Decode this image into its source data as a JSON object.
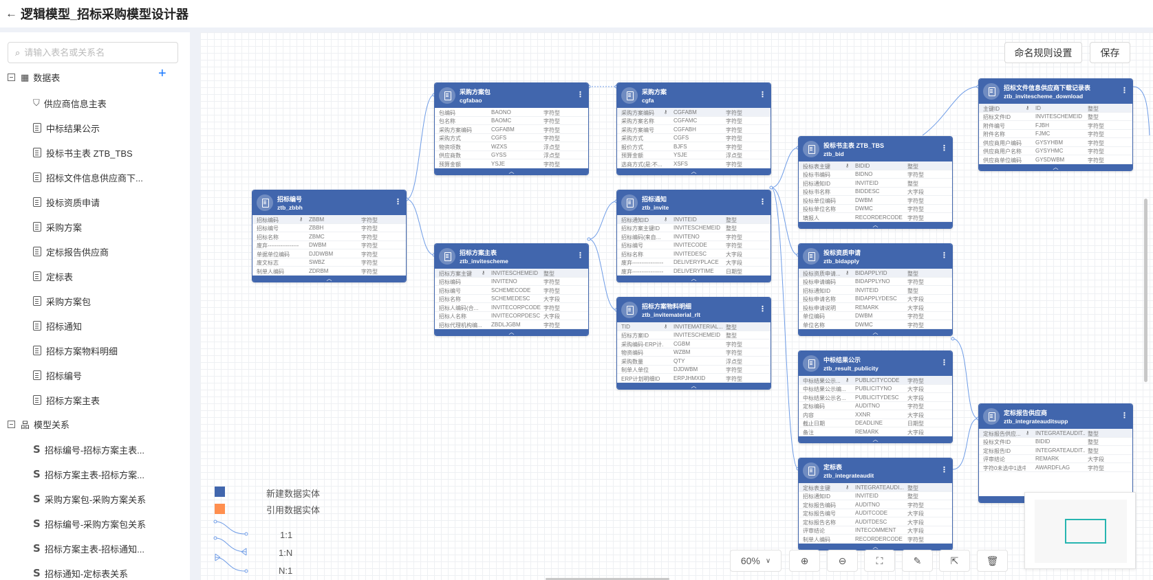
{
  "header": {
    "title": "逻辑模型_招标采购模型设计器",
    "back_icon": "arrow-left-icon"
  },
  "sidebar": {
    "search_placeholder": "请输入表名或关系名",
    "tables_group": "数据表",
    "tables": [
      "供应商信息主表",
      "中标结果公示",
      "投标书主表  ZTB_TBS",
      "招标文件信息供应商下...",
      "投标资质申请",
      "采购方案",
      "定标报告供应商",
      "定标表",
      "采购方案包",
      "招标通知",
      "招标方案物料明细",
      "招标编号",
      "招标方案主表"
    ],
    "relations_group": "模型关系",
    "relations": [
      "招标编号-招标方案主表...",
      "招标方案主表-招标方案...",
      "采购方案包-采购方案关系",
      "招标编号-采购方案包关系",
      "招标方案主表-招标通知...",
      "招标通知-定标表关系"
    ]
  },
  "toolbar": {
    "naming_rules": "命名规则设置",
    "save": "保存",
    "zoom": "60%"
  },
  "legend": {
    "new_entity": "新建数据实体",
    "ref_entity": "引用数据实体",
    "one_one": "1:1",
    "one_n": "1:N",
    "n_one": "N:1",
    "colors": {
      "new": "#4166ad",
      "ref": "#ff8f4f"
    }
  },
  "entities": [
    {
      "title": "招标编号",
      "code": "ztb_zbbh",
      "fields": [
        [
          "招标编码",
          1,
          "ZBBM",
          "字符型"
        ],
        [
          "招标编号",
          0,
          "ZBBH",
          "字符型"
        ],
        [
          "招标名称",
          0,
          "ZBMC",
          "字符型"
        ],
        [
          "废弃-----------------...",
          0,
          "DWBM",
          "字符型"
        ],
        [
          "单据单位编码",
          0,
          "DJDWBM",
          "字符型"
        ],
        [
          "废文标志",
          0,
          "SWBZ",
          "字符型"
        ],
        [
          "制单人编码",
          0,
          "ZDRBM",
          "字符型"
        ]
      ]
    },
    {
      "title": "采购方案包",
      "code": "cgfabao",
      "fields": [
        [
          "包编码",
          0,
          "BAONO",
          "字符型"
        ],
        [
          "包名称",
          0,
          "BAOMC",
          "字符型"
        ],
        [
          "采购方案编码",
          0,
          "CGFABM",
          "字符型"
        ],
        [
          "采购方式",
          0,
          "CGFS",
          "字符型"
        ],
        [
          "物资项数",
          0,
          "WZXS",
          "浮点型"
        ],
        [
          "供应商数",
          0,
          "GYSS",
          "浮点型"
        ],
        [
          "预算金额",
          0,
          "YSJE",
          "字符型"
        ]
      ]
    },
    {
      "title": "招标方案主表",
      "code": "ztb_invitescheme",
      "fields": [
        [
          "招标方案主键",
          1,
          "INVITESCHEMEID",
          "整型"
        ],
        [
          "招标编码",
          0,
          "INVITENO",
          "字符型"
        ],
        [
          "招标编号",
          0,
          "SCHEMECODE",
          "字符型"
        ],
        [
          "招标名称",
          0,
          "SCHEMEDESC",
          "大字段"
        ],
        [
          "招标人编码(合...",
          0,
          "INVITECORPCODE",
          "字符型"
        ],
        [
          "招标人名称",
          0,
          "INVITECORPDESC",
          "大字段"
        ],
        [
          "招标代理机构编...",
          0,
          "ZBDLJGBM",
          "字符型"
        ]
      ]
    },
    {
      "title": "采购方案",
      "code": "cgfa",
      "fields": [
        [
          "采购方案编码",
          1,
          "CGFABM",
          "字符型"
        ],
        [
          "采购方案名称",
          0,
          "CGFAMC",
          "字符型"
        ],
        [
          "采购方案编号",
          0,
          "CGFABH",
          "字符型"
        ],
        [
          "采购方式",
          0,
          "CGFS",
          "字符型"
        ],
        [
          "报价方式",
          0,
          "BJFS",
          "字符型"
        ],
        [
          "预算金额",
          0,
          "YSJE",
          "浮点型"
        ],
        [
          "选商方式(是:不...",
          0,
          "XSFS",
          "字符型"
        ]
      ]
    },
    {
      "title": "招标通知",
      "code": "ztb_invite",
      "fields": [
        [
          "招标通知ID",
          1,
          "INVITEID",
          "整型"
        ],
        [
          "招标方案主键ID",
          0,
          "INVITESCHEMEID",
          "整型"
        ],
        [
          "招标编码(来自...",
          0,
          "INVITENO",
          "字符型"
        ],
        [
          "招标编号",
          0,
          "INVITECODE",
          "字符型"
        ],
        [
          "招标名称",
          0,
          "INVITEDESC",
          "大字段"
        ],
        [
          "废弃-----------------...",
          0,
          "DELIVERYPLACE",
          "大字段"
        ],
        [
          "废弃-----------------...",
          0,
          "DELIVERYTIME",
          "日期型"
        ]
      ]
    },
    {
      "title": "招标方案物料明细",
      "code": "ztb_invitematerial_rlt",
      "fields": [
        [
          "TID",
          1,
          "INVITEMATERIAL...",
          "整型"
        ],
        [
          "招标方案ID",
          0,
          "INVITESCHEMEID",
          "整型"
        ],
        [
          "采购编码-ERP计...",
          0,
          "CGBM",
          "字符型"
        ],
        [
          "物资编码",
          0,
          "WZBM",
          "字符型"
        ],
        [
          "采购数量",
          0,
          "QTY",
          "浮点型"
        ],
        [
          "制单人单位",
          0,
          "DJDWBM",
          "字符型"
        ],
        [
          "ERP计划明细ID",
          0,
          "ERPJHMXID",
          "字符型"
        ]
      ]
    },
    {
      "title": "投标书主表 ZTB_TBS",
      "code": "ztb_bid",
      "fields": [
        [
          "投标表主键",
          1,
          "BIDID",
          "整型"
        ],
        [
          "投标书编码",
          0,
          "BIDNO",
          "字符型"
        ],
        [
          "招标通知ID",
          0,
          "INVITEID",
          "整型"
        ],
        [
          "投标书名称",
          0,
          "BIDDESC",
          "大字段"
        ],
        [
          "投标单位编码",
          0,
          "DWBM",
          "字符型"
        ],
        [
          "投标单位名称",
          0,
          "DWMC",
          "字符型"
        ],
        [
          "填报人",
          0,
          "RECORDERCODE",
          "字符型"
        ]
      ]
    },
    {
      "title": "投标资质申请",
      "code": "ztb_bidapply",
      "fields": [
        [
          "投标资质申请...",
          1,
          "BIDAPPLYID",
          "整型"
        ],
        [
          "投标申请编码",
          0,
          "BIDAPPLYNO",
          "字符型"
        ],
        [
          "招标通知ID",
          0,
          "INVITEID",
          "整型"
        ],
        [
          "投标申请名称",
          0,
          "BIDAPPLYDESC",
          "大字段"
        ],
        [
          "投标申请说明",
          0,
          "REMARK",
          "大字段"
        ],
        [
          "单位编码",
          0,
          "DWBM",
          "字符型"
        ],
        [
          "单位名称",
          0,
          "DWMC",
          "字符型"
        ]
      ]
    },
    {
      "title": "中标结果公示",
      "code": "ztb_result_publicity",
      "fields": [
        [
          "中标结果公示...",
          1,
          "PUBLICITYCODE",
          "字符型"
        ],
        [
          "中标结果公示编...",
          0,
          "PUBLICITYNO",
          "大字段"
        ],
        [
          "中标结果公示名...",
          0,
          "PUBLICITYDESC",
          "大字段"
        ],
        [
          "定标编码",
          0,
          "AUDITNO",
          "字符型"
        ],
        [
          "内容",
          0,
          "XXNR",
          "大字段"
        ],
        [
          "截止日期",
          0,
          "DEADLINE",
          "日期型"
        ],
        [
          "备注",
          0,
          "REMARK",
          "大字段"
        ]
      ]
    },
    {
      "title": "定标表",
      "code": "ztb_integrateaudit",
      "fields": [
        [
          "定标表主键",
          1,
          "INTEGRATEAUDI...",
          "整型"
        ],
        [
          "招标通知ID",
          0,
          "INVITEID",
          "整型"
        ],
        [
          "定标报告编码",
          0,
          "AUDITNO",
          "字符型"
        ],
        [
          "定标报告编号",
          0,
          "AUDITCODE",
          "大字段"
        ],
        [
          "定标报告名称",
          0,
          "AUDITDESC",
          "大字段"
        ],
        [
          "评审结论",
          0,
          "INTECOMMENT",
          "大字段"
        ],
        [
          "制单人编码",
          0,
          "RECORDERCODE",
          "字符型"
        ]
      ]
    },
    {
      "title": "招标文件信息供应商下载记录表",
      "code": "ztb_invitescheme_download",
      "fields": [
        [
          "主键ID",
          1,
          "ID",
          "整型"
        ],
        [
          "招标文件ID",
          0,
          "INVITESCHEMEID",
          "整型"
        ],
        [
          "附件编号",
          0,
          "FJBH",
          "字符型"
        ],
        [
          "附件名称",
          0,
          "FJMC",
          "字符型"
        ],
        [
          "供应商用户编码",
          0,
          "GYSYHBM",
          "字符型"
        ],
        [
          "供应商用户名称",
          0,
          "GYSYHMC",
          "字符型"
        ],
        [
          "供应商单位编码",
          0,
          "GYSDWBM",
          "字符型"
        ]
      ]
    },
    {
      "title": "定标报告供应商",
      "code": "ztb_integrateauditsupp",
      "fields": [
        [
          "定标报告供应...",
          1,
          "INTEGRATEAUDIT...",
          "整型"
        ],
        [
          "投标文件ID",
          0,
          "BIDID",
          "整型"
        ],
        [
          "定标报告ID",
          0,
          "INTEGRATEAUDIT...",
          "整型"
        ],
        [
          "评审结论",
          0,
          "REMARK",
          "大字段"
        ],
        [
          "字符0未选中1选中",
          0,
          "AWARDFLAG",
          "字符型"
        ]
      ]
    }
  ]
}
